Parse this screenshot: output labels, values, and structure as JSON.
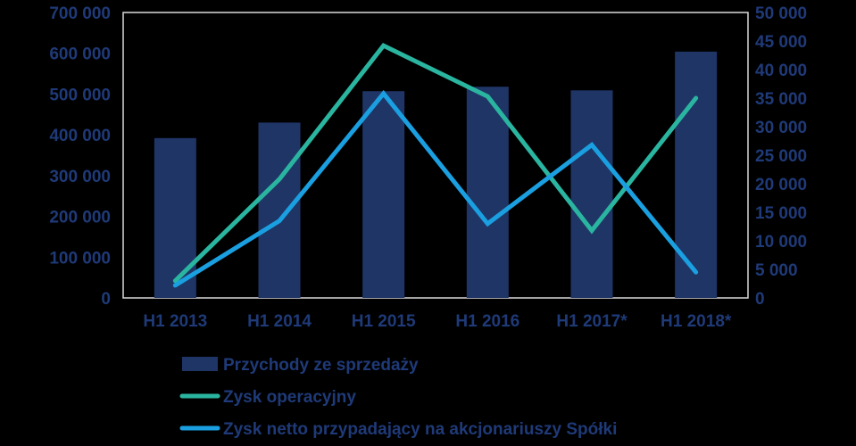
{
  "chart_data": {
    "type": "bar",
    "categories": [
      "H1 2013",
      "H1 2014",
      "H1 2015",
      "H1 2016",
      "H1 2017*",
      "H1 2018*"
    ],
    "y_left": {
      "ticks": [
        "0",
        "100 000",
        "200 000",
        "300 000",
        "400 000",
        "500 000",
        "600 000",
        "700 000"
      ],
      "range": [
        0,
        700000
      ]
    },
    "y_right": {
      "ticks": [
        "0",
        "5 000",
        "10 000",
        "15 000",
        "20 000",
        "25 000",
        "30 000",
        "35 000",
        "40 000",
        "45 000",
        "50 000"
      ],
      "range": [
        0,
        50000
      ]
    },
    "series": [
      {
        "name": "Przychody ze sprzedaży",
        "type": "bar",
        "axis": "left",
        "color": "#1f3566",
        "values": [
          392000,
          430000,
          507000,
          518000,
          509000,
          604000
        ]
      },
      {
        "name": "Zysk operacyjny",
        "type": "line",
        "axis": "right",
        "color": "#2ab5a0",
        "values": [
          3000,
          20800,
          44200,
          35300,
          11800,
          35000
        ]
      },
      {
        "name": "Zysk netto przypadający na akcjonariuszy Spółki",
        "type": "line",
        "axis": "right",
        "color": "#1a9fe0",
        "values": [
          2200,
          13500,
          35800,
          13000,
          26800,
          4500
        ]
      }
    ],
    "legend_position": "bottom",
    "grid": false
  }
}
